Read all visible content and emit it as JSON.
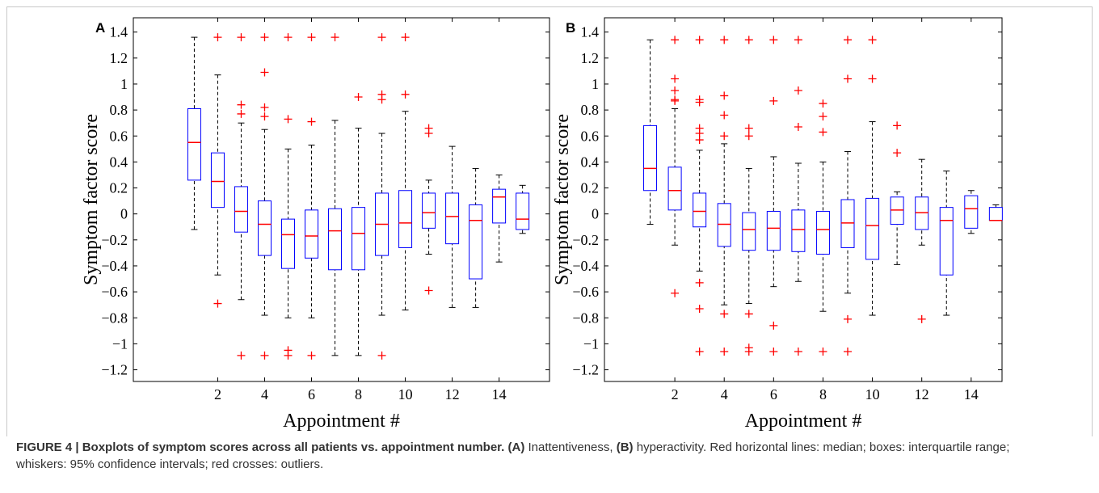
{
  "chart_data": [
    {
      "type": "box",
      "panel_label": "A",
      "xlabel": "Appointment #",
      "ylabel": "Symptom factor score",
      "x": [
        1,
        2,
        3,
        4,
        5,
        6,
        7,
        8,
        9,
        10,
        11,
        12,
        13,
        14,
        15
      ],
      "xlim": [
        -1.6,
        16.15
      ],
      "xticks": [
        2,
        4,
        6,
        8,
        10,
        12,
        14
      ],
      "ylim": [
        -1.29,
        1.51
      ],
      "yticks": [
        {
          "value": -1.2,
          "label": "−1.2"
        },
        {
          "value": -1,
          "label": "−1"
        },
        {
          "value": -0.8,
          "label": "−0.8"
        },
        {
          "value": -0.6,
          "label": "−0.6"
        },
        {
          "value": -0.4,
          "label": "−0.4"
        },
        {
          "value": -0.2,
          "label": "−0.2"
        },
        0,
        0.2,
        0.4,
        0.6,
        0.8,
        1,
        1.2,
        1.4
      ],
      "box_color": "#0000ff",
      "median_color": "#ff0000",
      "whisker_color": "#000000",
      "flier_color": "#ff0000",
      "boxes": [
        {
          "whislo": -0.12,
          "q1": 0.26,
          "med": 0.55,
          "q3": 0.81,
          "whishi": 1.36,
          "fliers": []
        },
        {
          "whislo": -0.47,
          "q1": 0.05,
          "med": 0.25,
          "q3": 0.47,
          "whishi": 1.07,
          "fliers": [
            1.36,
            -0.69
          ]
        },
        {
          "whislo": -0.66,
          "q1": -0.14,
          "med": 0.02,
          "q3": 0.21,
          "whishi": 0.7,
          "fliers": [
            1.36,
            0.84,
            0.77,
            -1.09
          ]
        },
        {
          "whislo": -0.78,
          "q1": -0.32,
          "med": -0.08,
          "q3": 0.1,
          "whishi": 0.65,
          "fliers": [
            1.36,
            1.09,
            0.82,
            0.75,
            -1.09
          ]
        },
        {
          "whislo": -0.8,
          "q1": -0.42,
          "med": -0.16,
          "q3": -0.04,
          "whishi": 0.5,
          "fliers": [
            1.36,
            0.73,
            -1.05,
            -1.09
          ]
        },
        {
          "whislo": -0.8,
          "q1": -0.34,
          "med": -0.17,
          "q3": 0.03,
          "whishi": 0.53,
          "fliers": [
            1.36,
            0.71,
            -1.09
          ]
        },
        {
          "whislo": -1.09,
          "q1": -0.43,
          "med": -0.13,
          "q3": 0.04,
          "whishi": 0.72,
          "fliers": [
            1.36
          ]
        },
        {
          "whislo": -1.09,
          "q1": -0.43,
          "med": -0.15,
          "q3": 0.05,
          "whishi": 0.66,
          "fliers": [
            0.9
          ]
        },
        {
          "whislo": -0.78,
          "q1": -0.32,
          "med": -0.08,
          "q3": 0.16,
          "whishi": 0.62,
          "fliers": [
            1.36,
            0.92,
            0.88,
            -1.09
          ]
        },
        {
          "whislo": -0.74,
          "q1": -0.26,
          "med": -0.07,
          "q3": 0.18,
          "whishi": 0.79,
          "fliers": [
            1.36,
            0.92
          ]
        },
        {
          "whislo": -0.31,
          "q1": -0.11,
          "med": 0.01,
          "q3": 0.16,
          "whishi": 0.26,
          "fliers": [
            0.66,
            0.62,
            -0.59
          ]
        },
        {
          "whislo": -0.72,
          "q1": -0.23,
          "med": -0.02,
          "q3": 0.16,
          "whishi": 0.52,
          "fliers": []
        },
        {
          "whislo": -0.72,
          "q1": -0.5,
          "med": -0.05,
          "q3": 0.07,
          "whishi": 0.35,
          "fliers": []
        },
        {
          "whislo": -0.37,
          "q1": -0.07,
          "med": 0.13,
          "q3": 0.19,
          "whishi": 0.3,
          "fliers": []
        },
        {
          "whislo": -0.15,
          "q1": -0.12,
          "med": -0.04,
          "q3": 0.16,
          "whishi": 0.22,
          "fliers": []
        }
      ]
    },
    {
      "type": "box",
      "panel_label": "B",
      "xlabel": "Appointment #",
      "ylabel": "Symptom factor score",
      "x": [
        1,
        2,
        3,
        4,
        5,
        6,
        7,
        8,
        9,
        10,
        11,
        12,
        13,
        14,
        15
      ],
      "xlim": [
        -0.85,
        15.25
      ],
      "xticks": [
        2,
        4,
        6,
        8,
        10,
        12,
        14
      ],
      "ylim": [
        -1.29,
        1.51
      ],
      "yticks": [
        {
          "value": -1.2,
          "label": "−1.2"
        },
        {
          "value": -1,
          "label": "−1"
        },
        {
          "value": -0.8,
          "label": "−0.8"
        },
        {
          "value": -0.6,
          "label": "−0.6"
        },
        {
          "value": -0.4,
          "label": "−0.4"
        },
        {
          "value": -0.2,
          "label": "−0.2"
        },
        0,
        0.2,
        0.4,
        0.6,
        0.8,
        1,
        1.2,
        1.4
      ],
      "box_color": "#0000ff",
      "median_color": "#ff0000",
      "whisker_color": "#000000",
      "flier_color": "#ff0000",
      "boxes": [
        {
          "whislo": -0.08,
          "q1": 0.18,
          "med": 0.35,
          "q3": 0.68,
          "whishi": 1.34,
          "fliers": []
        },
        {
          "whislo": -0.24,
          "q1": 0.03,
          "med": 0.18,
          "q3": 0.36,
          "whishi": 0.81,
          "fliers": [
            1.34,
            1.04,
            0.95,
            0.88,
            0.87,
            -0.61
          ]
        },
        {
          "whislo": -0.44,
          "q1": -0.1,
          "med": 0.02,
          "q3": 0.16,
          "whishi": 0.49,
          "fliers": [
            1.34,
            0.88,
            0.86,
            0.66,
            0.62,
            0.57,
            -0.53,
            -0.73,
            -1.06
          ]
        },
        {
          "whislo": -0.7,
          "q1": -0.25,
          "med": -0.08,
          "q3": 0.08,
          "whishi": 0.54,
          "fliers": [
            1.34,
            0.91,
            0.76,
            0.6,
            -0.77,
            -1.06
          ]
        },
        {
          "whislo": -0.69,
          "q1": -0.28,
          "med": -0.12,
          "q3": 0.01,
          "whishi": 0.35,
          "fliers": [
            1.34,
            0.66,
            0.6,
            -0.77,
            -1.03,
            -1.06
          ]
        },
        {
          "whislo": -0.56,
          "q1": -0.28,
          "med": -0.11,
          "q3": 0.02,
          "whishi": 0.44,
          "fliers": [
            1.34,
            0.87,
            -0.86,
            -1.06
          ]
        },
        {
          "whislo": -0.52,
          "q1": -0.29,
          "med": -0.12,
          "q3": 0.03,
          "whishi": 0.39,
          "fliers": [
            1.34,
            0.95,
            0.67,
            -1.06
          ]
        },
        {
          "whislo": -0.75,
          "q1": -0.31,
          "med": -0.12,
          "q3": 0.02,
          "whishi": 0.4,
          "fliers": [
            0.85,
            0.75,
            0.63,
            -1.06
          ]
        },
        {
          "whislo": -0.61,
          "q1": -0.26,
          "med": -0.07,
          "q3": 0.11,
          "whishi": 0.48,
          "fliers": [
            1.34,
            1.04,
            -0.81,
            -1.06
          ]
        },
        {
          "whislo": -0.78,
          "q1": -0.35,
          "med": -0.09,
          "q3": 0.12,
          "whishi": 0.71,
          "fliers": [
            1.34,
            1.04
          ]
        },
        {
          "whislo": -0.39,
          "q1": -0.08,
          "med": 0.03,
          "q3": 0.13,
          "whishi": 0.17,
          "fliers": [
            0.68,
            0.47
          ]
        },
        {
          "whislo": -0.24,
          "q1": -0.12,
          "med": 0.01,
          "q3": 0.13,
          "whishi": 0.42,
          "fliers": [
            -0.81
          ]
        },
        {
          "whislo": -0.78,
          "q1": -0.47,
          "med": -0.05,
          "q3": 0.05,
          "whishi": 0.33,
          "fliers": []
        },
        {
          "whislo": -0.15,
          "q1": -0.11,
          "med": 0.04,
          "q3": 0.14,
          "whishi": 0.18,
          "fliers": []
        },
        {
          "whislo": -0.05,
          "q1": -0.05,
          "med": -0.05,
          "q3": 0.05,
          "whishi": 0.07,
          "fliers": []
        }
      ]
    }
  ],
  "caption": [
    "FIGURE 4 | Boxplots of symptom scores across all patients vs. appointment number. (A)",
    " Inattentiveness, ",
    "(B)",
    " hyperactivity. Red horizontal lines: median; boxes: interquartile range; whiskers: 95% confidence intervals; red crosses: outliers."
  ]
}
